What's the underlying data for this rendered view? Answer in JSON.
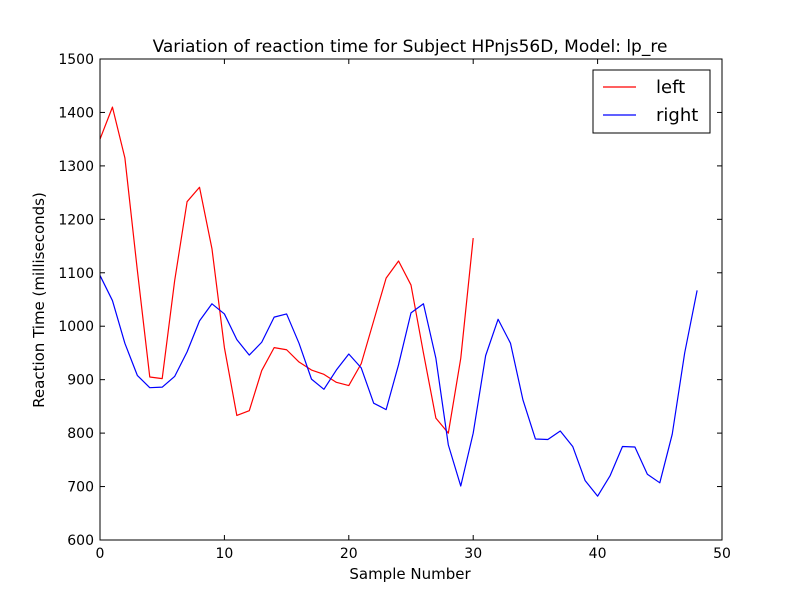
{
  "chart_data": {
    "type": "line",
    "title": "Variation of reaction time for Subject HPnjs56D, Model: lp_re",
    "xlabel": "Sample Number",
    "ylabel": "Reaction Time (milliseconds)",
    "xlim": [
      0,
      50
    ],
    "ylim": [
      600,
      1500
    ],
    "xticks": [
      0,
      10,
      20,
      30,
      40,
      50
    ],
    "yticks": [
      600,
      700,
      800,
      900,
      1000,
      1100,
      1200,
      1300,
      1400,
      1500
    ],
    "grid": false,
    "legend_position": "top-right",
    "series": [
      {
        "name": "left",
        "color": "#ff0000",
        "x": [
          0,
          1,
          2,
          3,
          4,
          5,
          6,
          7,
          8,
          9,
          10,
          11,
          12,
          13,
          14,
          15,
          16,
          17,
          18,
          19,
          20,
          21,
          22,
          23,
          24,
          25,
          26,
          27,
          28,
          29,
          30
        ],
        "values": [
          1350,
          1410,
          1315,
          1105,
          905,
          902,
          1085,
          1233,
          1260,
          1145,
          960,
          833,
          842,
          917,
          960,
          956,
          933,
          918,
          910,
          895,
          889,
          930,
          1010,
          1090,
          1122,
          1077,
          950,
          828,
          800,
          940,
          1165
        ]
      },
      {
        "name": "right",
        "color": "#0000ff",
        "x": [
          0,
          1,
          2,
          3,
          4,
          5,
          6,
          7,
          8,
          9,
          10,
          11,
          12,
          13,
          14,
          15,
          16,
          17,
          18,
          19,
          20,
          21,
          22,
          23,
          24,
          25,
          26,
          27,
          28,
          29,
          30,
          31,
          32,
          33,
          34,
          35,
          36,
          37,
          38,
          39,
          40,
          41,
          42,
          43,
          44,
          45,
          46,
          47,
          48
        ],
        "values": [
          1095,
          1048,
          968,
          908,
          885,
          886,
          906,
          952,
          1010,
          1042,
          1023,
          975,
          946,
          970,
          1017,
          1023,
          968,
          901,
          882,
          918,
          948,
          922,
          856,
          844,
          928,
          1025,
          1042,
          940,
          778,
          701,
          800,
          945,
          1013,
          968,
          862,
          789,
          788,
          804,
          775,
          711,
          682,
          720,
          775,
          774,
          723,
          707,
          798,
          950,
          1067
        ]
      }
    ]
  }
}
